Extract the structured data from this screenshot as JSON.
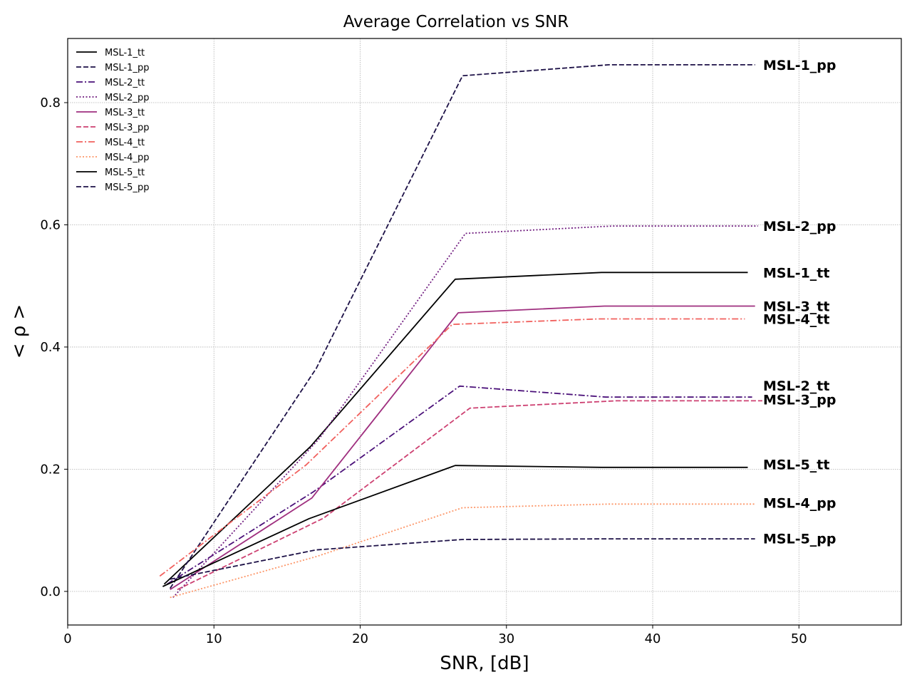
{
  "chart_data": {
    "type": "line",
    "title": "Average Correlation vs SNR",
    "xlabel": "SNR, [dB]",
    "ylabel": "< ρ >",
    "xlim": [
      0,
      57
    ],
    "ylim": [
      -0.055,
      0.905
    ],
    "xticks": [
      0,
      10,
      20,
      30,
      40,
      50
    ],
    "yticks": [
      0.0,
      0.2,
      0.4,
      0.6,
      0.8
    ],
    "xtick_labels": [
      "0",
      "10",
      "20",
      "30",
      "40",
      "50"
    ],
    "ytick_labels": [
      "0.0",
      "0.2",
      "0.4",
      "0.6",
      "0.8"
    ],
    "grid": true,
    "legend_position": "top-left",
    "series": [
      {
        "name": "MSL-1_tt",
        "color": "#000000",
        "dash": "solid",
        "x": [
          6.6,
          16.6,
          26.5,
          36.5,
          46.5
        ],
        "y": [
          0.012,
          0.237,
          0.511,
          0.522,
          0.522
        ]
      },
      {
        "name": "MSL-1_pp",
        "color": "#1d1147",
        "dash": "dashed",
        "x": [
          7.0,
          17.0,
          27.0,
          37.0,
          47.0
        ],
        "y": [
          0.005,
          0.365,
          0.844,
          0.862,
          0.862
        ]
      },
      {
        "name": "MSL-2_tt",
        "color": "#4a1079",
        "dash": "dashdot",
        "x": [
          6.8,
          16.8,
          26.8,
          36.8,
          46.8
        ],
        "y": [
          0.012,
          0.163,
          0.336,
          0.318,
          0.318
        ]
      },
      {
        "name": "MSL-2_pp",
        "color": "#721f81",
        "dash": "dotted",
        "x": [
          7.2,
          17.2,
          27.2,
          37.2,
          47.2
        ],
        "y": [
          -0.01,
          0.25,
          0.586,
          0.598,
          0.598
        ]
      },
      {
        "name": "MSL-3_tt",
        "color": "#9f2f7f",
        "dash": "solid",
        "x": [
          7.0,
          16.7,
          26.7,
          36.7,
          47.0
        ],
        "y": [
          0.003,
          0.153,
          0.456,
          0.467,
          0.467
        ]
      },
      {
        "name": "MSL-3_pp",
        "color": "#cd4071",
        "dash": "dashed",
        "x": [
          7.5,
          17.5,
          27.5,
          37.5,
          47.5
        ],
        "y": [
          0.003,
          0.12,
          0.3,
          0.312,
          0.312
        ]
      },
      {
        "name": "MSL-4_tt",
        "color": "#f1605d",
        "dash": "dashdot",
        "x": [
          6.3,
          16.3,
          26.3,
          36.3,
          46.3
        ],
        "y": [
          0.025,
          0.207,
          0.437,
          0.446,
          0.446
        ]
      },
      {
        "name": "MSL-4_pp",
        "color": "#fd9668",
        "dash": "dotted",
        "x": [
          7.0,
          17.0,
          27.0,
          37.0,
          47.0
        ],
        "y": [
          -0.01,
          0.057,
          0.137,
          0.143,
          0.143
        ]
      },
      {
        "name": "MSL-5_tt",
        "color": "#000000",
        "dash": "solid",
        "x": [
          6.5,
          16.5,
          26.5,
          36.5,
          46.5
        ],
        "y": [
          0.008,
          0.119,
          0.206,
          0.203,
          0.203
        ]
      },
      {
        "name": "MSL-5_pp",
        "color": "#1d1147",
        "dash": "dashed",
        "x": [
          7.0,
          17.0,
          27.0,
          37.0,
          47.0
        ],
        "y": [
          0.02,
          0.068,
          0.085,
          0.086,
          0.086
        ]
      }
    ],
    "end_labels": [
      {
        "text": "MSL-1_pp",
        "y": 0.862
      },
      {
        "text": "MSL-2_pp",
        "y": 0.598
      },
      {
        "text": "MSL-1_tt",
        "y": 0.522
      },
      {
        "text": "MSL-3_tt",
        "y": 0.467
      },
      {
        "text": "MSL-4_tt",
        "y": 0.446
      },
      {
        "text": "MSL-2_tt",
        "y": 0.337
      },
      {
        "text": "MSL-3_pp",
        "y": 0.314
      },
      {
        "text": "MSL-5_tt",
        "y": 0.208
      },
      {
        "text": "MSL-4_pp",
        "y": 0.145
      },
      {
        "text": "MSL-5_pp",
        "y": 0.087
      }
    ]
  }
}
